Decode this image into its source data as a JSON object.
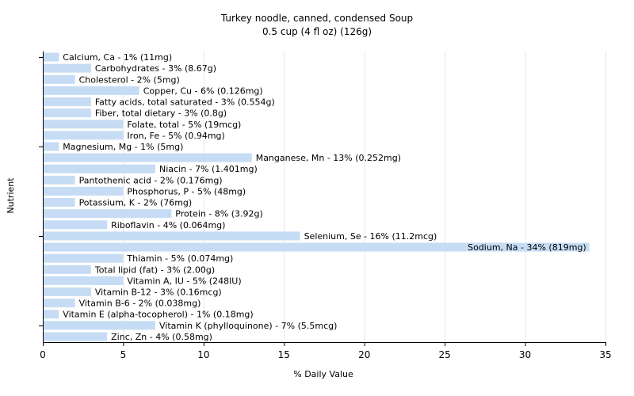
{
  "chart_data": {
    "type": "bar",
    "orientation": "horizontal",
    "title": "Turkey noodle, canned, condensed Soup",
    "subtitle": "0.5 cup (4 fl oz) (126g)",
    "xlabel": "% Daily Value",
    "ylabel": "Nutrient",
    "xlim": [
      0,
      35
    ],
    "xticks": [
      0,
      5,
      10,
      15,
      20,
      25,
      30,
      35
    ],
    "grid": true,
    "bar_color": "#c6dcf5",
    "categories": [
      "Calcium, Ca - 1% (11mg)",
      "Carbohydrates - 3% (8.67g)",
      "Cholesterol - 2% (5mg)",
      "Copper, Cu - 6% (0.126mg)",
      "Fatty acids, total saturated - 3% (0.554g)",
      "Fiber, total dietary - 3% (0.8g)",
      "Folate, total - 5% (19mcg)",
      "Iron, Fe - 5% (0.94mg)",
      "Magnesium, Mg - 1% (5mg)",
      "Manganese, Mn - 13% (0.252mg)",
      "Niacin - 7% (1.401mg)",
      "Pantothenic acid - 2% (0.176mg)",
      "Phosphorus, P - 5% (48mg)",
      "Potassium, K - 2% (76mg)",
      "Protein - 8% (3.92g)",
      "Riboflavin - 4% (0.064mg)",
      "Selenium, Se - 16% (11.2mcg)",
      "Sodium, Na - 34% (819mg)",
      "Thiamin - 5% (0.074mg)",
      "Total lipid (fat) - 3% (2.00g)",
      "Vitamin A, IU - 5% (248IU)",
      "Vitamin B-12 - 3% (0.16mcg)",
      "Vitamin B-6 - 2% (0.038mg)",
      "Vitamin E (alpha-tocopherol) - 1% (0.18mg)",
      "Vitamin K (phylloquinone) - 7% (5.5mcg)",
      "Zinc, Zn - 4% (0.58mg)"
    ],
    "values": [
      1,
      3,
      2,
      6,
      3,
      3,
      5,
      5,
      1,
      13,
      7,
      2,
      5,
      2,
      8,
      4,
      16,
      34,
      5,
      3,
      5,
      3,
      2,
      1,
      7,
      4
    ]
  }
}
